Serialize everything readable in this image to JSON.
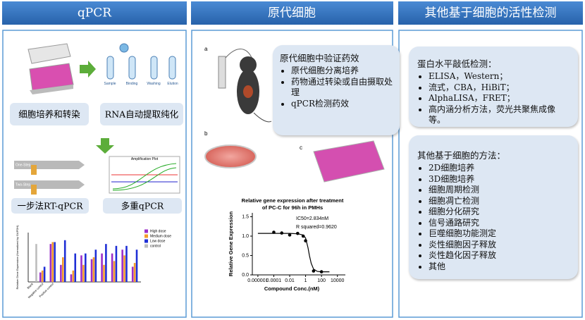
{
  "headers": [
    "qPCR",
    "原代细胞",
    "其他基于细胞的活性检测"
  ],
  "qpcr": {
    "steps": [
      "细胞培养和转染",
      "RNA自动提取纯化",
      "一步法RT-qPCR",
      "多重qPCR"
    ],
    "image_texts": [
      "Sample",
      "Binding",
      "Washing",
      "Elution",
      "One-Step",
      "Two-Step",
      "Amplification Plot"
    ],
    "expression_chart": {
      "type": "bar",
      "y_label": "Relative Gene Expression (Normalized by GAPDH)",
      "categories": [
        "Blank",
        "Negative control",
        "Positive control",
        null,
        null,
        null,
        null,
        null,
        null,
        null,
        null
      ],
      "ylim": [
        0,
        1.3
      ],
      "legend": "top-right",
      "series": [
        {
          "name": "High dose",
          "color": "#9b2fc9",
          "values": [
            null,
            0.25,
            1.0,
            0.45,
            0.2,
            0.7,
            0.6,
            0.75,
            0.75,
            0.85,
            0.4
          ]
        },
        {
          "name": "Medium dose",
          "color": "#f39c2a",
          "values": [
            null,
            0.3,
            1.05,
            0.65,
            0.3,
            0.45,
            0.65,
            0.45,
            0.55,
            0.7,
            0.5
          ]
        },
        {
          "name": "Low dose",
          "color": "#1f2fd6",
          "values": [
            null,
            0.4,
            1.05,
            1.1,
            0.75,
            0.75,
            0.85,
            1.0,
            0.95,
            0.95,
            0.85
          ]
        },
        {
          "name": "control",
          "color": "#bdbdbd",
          "values": [
            1.0,
            null,
            null,
            null,
            null,
            null,
            null,
            null,
            null,
            null,
            null
          ]
        }
      ]
    }
  },
  "primary": {
    "panel_labels": [
      "a",
      "b",
      "c"
    ],
    "info": {
      "title": "原代细胞中验证药效",
      "bullets": [
        "原代细胞分离培养",
        "药物通过转染或自由摄取处理",
        "qPCR检测药效"
      ]
    },
    "chart": {
      "type": "scatter",
      "title_lines": [
        "Relative gene expression after treatment",
        "of PC-C for 96h in PMHs"
      ],
      "annotations": [
        "IC50=2.834nM",
        "R squared=0.9620"
      ],
      "x_label": "Compound Conc.(nM)",
      "y_label": "Relative Gene Expression",
      "x_log": true,
      "xlim": [
        2e-07,
        100000
      ],
      "ylim": [
        0,
        1.6
      ],
      "xticks": [
        1e-06,
        0.0001,
        0.01,
        1,
        100,
        10000
      ],
      "yticks": [
        {
          "value": 0,
          "label": "0.0"
        },
        0.5,
        {
          "value": 1,
          "label": "1.0"
        },
        1.5
      ],
      "color": "#000000",
      "x": [
        0.0001,
        0.001,
        0.01,
        0.1,
        0.5,
        1,
        10,
        100
      ],
      "values": [
        1.1,
        1.08,
        1.03,
        1.07,
        1.0,
        0.88,
        0.1,
        0.08
      ],
      "fit": {
        "x": [
          1e-06,
          0.0001,
          0.01,
          0.1,
          0.5,
          1,
          2,
          3,
          5,
          10,
          30,
          100,
          1000
        ],
        "values": [
          1.07,
          1.07,
          1.07,
          1.06,
          1.03,
          0.95,
          0.7,
          0.5,
          0.3,
          0.15,
          0.09,
          0.08,
          0.08
        ]
      }
    }
  },
  "other": {
    "protein": {
      "title": "蛋白水平敲低检测：",
      "bullets": [
        "ELISA，Western；",
        "流式，CBA，HiBiT；",
        "AlphaLISA，FRET；",
        "高内涵分析方法，荧光共聚焦成像等。"
      ]
    },
    "methods": {
      "title": "其他基于细胞的方法：",
      "bullets": [
        "2D细胞培养",
        "3D细胞培养",
        "细胞周期检测",
        "细胞凋亡检测",
        "细胞分化研究",
        "信号通路研究",
        "巨噬细胞功能测定",
        "炎性细胞因子释放",
        "炎性趋化因子释放",
        "其他"
      ]
    }
  }
}
